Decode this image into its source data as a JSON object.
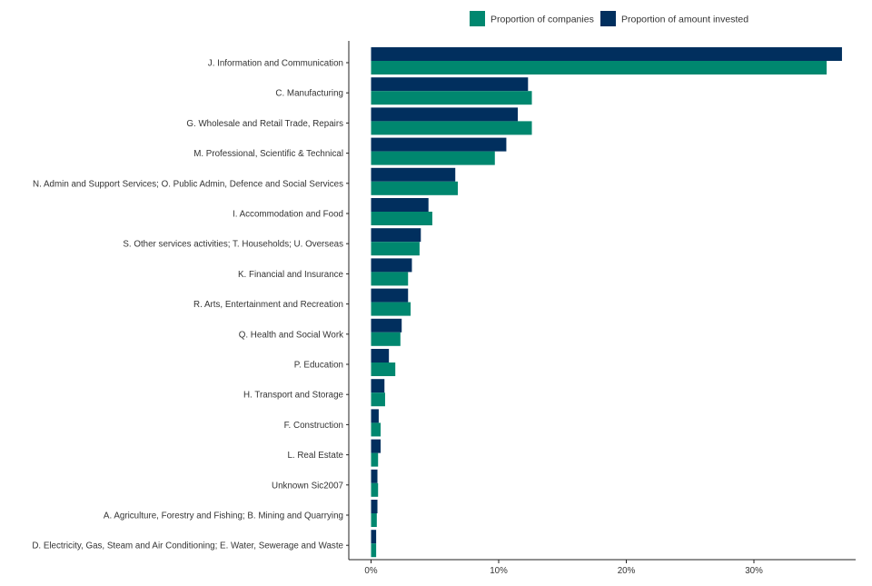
{
  "colors": {
    "companies": "#00876F",
    "invested": "#012F5E",
    "axis": "#222222",
    "tick_text": "#333333"
  },
  "chart_data": {
    "type": "bar",
    "orientation": "horizontal",
    "title": "",
    "xlabel": "",
    "ylabel": "",
    "xlim": [
      0,
      37
    ],
    "grid": false,
    "legend_position": "top-right",
    "x_ticks": [
      0,
      10,
      20,
      30
    ],
    "x_tick_labels": [
      "0%",
      "10%",
      "20%",
      "30%"
    ],
    "categories": [
      "J. Information and Communication",
      "C. Manufacturing",
      "G. Wholesale and Retail Trade, Repairs",
      "M. Professional, Scientific & Technical",
      "N. Admin and Support Services; O. Public Admin, Defence and Social Services",
      "I. Accommodation and Food",
      "S. Other services activities; T. Households; U. Overseas",
      "K. Financial and Insurance",
      "R. Arts, Entertainment and Recreation",
      "Q. Health and Social Work",
      "P. Education",
      "H. Transport and Storage",
      "F. Construction",
      "L. Real Estate",
      "Unknown Sic2007",
      "A. Agriculture, Forestry and Fishing; B. Mining and Quarrying",
      "D. Electricity, Gas, Steam and Air Conditioning; E. Water, Sewerage and Waste"
    ],
    "series": [
      {
        "name": "Proportion of companies",
        "color_key": "companies",
        "values": [
          35.7,
          12.6,
          12.6,
          9.7,
          6.8,
          4.8,
          3.8,
          2.9,
          3.1,
          2.3,
          1.9,
          1.1,
          0.75,
          0.55,
          0.55,
          0.45,
          0.4
        ]
      },
      {
        "name": "Proportion of amount invested",
        "color_key": "invested",
        "values": [
          36.9,
          12.3,
          11.5,
          10.6,
          6.6,
          4.5,
          3.9,
          3.2,
          2.9,
          2.4,
          1.4,
          1.05,
          0.6,
          0.75,
          0.5,
          0.5,
          0.4
        ]
      }
    ]
  }
}
